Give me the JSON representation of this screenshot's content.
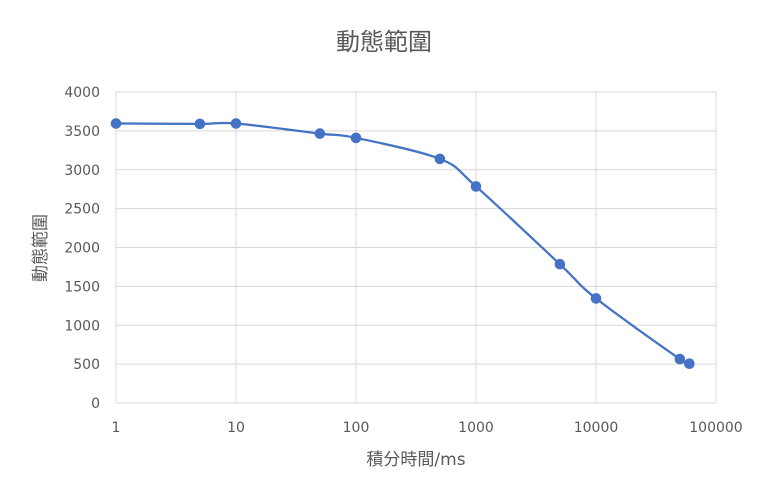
{
  "chart_data": {
    "type": "line",
    "title": "動態範圍",
    "xlabel": "積分時間/ms",
    "ylabel": "動態範圍",
    "x_scale": "log",
    "xlim": [
      1,
      100000
    ],
    "ylim": [
      0,
      4000
    ],
    "x_ticks": [
      "1",
      "10",
      "100",
      "1000",
      "10000",
      "100000"
    ],
    "y_ticks": [
      "0",
      "500",
      "1000",
      "1500",
      "2000",
      "2500",
      "3000",
      "3500",
      "4000"
    ],
    "grid": true,
    "legend": "none",
    "color": "#4472C4",
    "series": [
      {
        "x": [
          1,
          5,
          10,
          50,
          100,
          500,
          1000,
          5000,
          10000,
          50000,
          60000
        ],
        "y": [
          3595,
          3590,
          3595,
          3465,
          3410,
          3140,
          2785,
          1785,
          1345,
          565,
          505
        ]
      }
    ]
  }
}
